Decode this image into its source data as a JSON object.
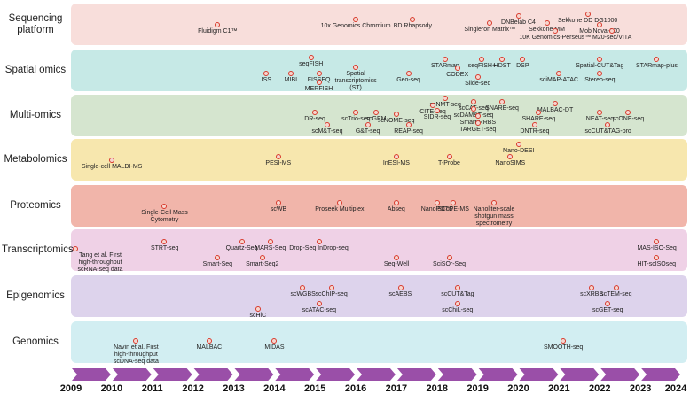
{
  "rows": [
    {
      "label": "Sequencing platform",
      "color": "#f8dedb",
      "techs": [
        {
          "name": "Fluidigm C1™",
          "year": 2012.6,
          "dy": 0,
          "dir": "below"
        },
        {
          "name": "10x Genomics Chromium",
          "year": 2016.0,
          "dy": -6,
          "dir": "below"
        },
        {
          "name": "BD Rhapsody",
          "year": 2017.4,
          "dy": -6,
          "dir": "below"
        },
        {
          "name": "DNBelab C4",
          "year": 2020.0,
          "dy": -10,
          "dir": "below"
        },
        {
          "name": "Sekkone DD DG1000",
          "year": 2021.7,
          "dy": -12,
          "dir": "below"
        },
        {
          "name": "Singleron Matrix™",
          "year": 2019.3,
          "dy": -2,
          "dir": "below"
        },
        {
          "name": "Sekkone MM",
          "year": 2020.7,
          "dy": -2,
          "dir": "below"
        },
        {
          "name": "MobiNova-100",
          "year": 2022.0,
          "dy": 0,
          "dir": "below"
        },
        {
          "name": "10K Genomics-Perseus™",
          "year": 2020.9,
          "dy": 7,
          "dir": "below"
        },
        {
          "name": "M20-seq/VITA",
          "year": 2022.3,
          "dy": 7,
          "dir": "below"
        }
      ]
    },
    {
      "label": "Spatial omics",
      "color": "#c6e9e6",
      "techs": [
        {
          "name": "ISS",
          "year": 2013.8,
          "dy": 3,
          "dir": "below"
        },
        {
          "name": "MIBI",
          "year": 2014.4,
          "dy": 3,
          "dir": "below"
        },
        {
          "name": "seqFISH",
          "year": 2014.9,
          "dy": -15,
          "dir": "below"
        },
        {
          "name": "FISSEQ",
          "year": 2015.1,
          "dy": 3,
          "dir": "below"
        },
        {
          "name": "MERFISH",
          "year": 2015.1,
          "dy": 13,
          "dir": "below"
        },
        {
          "name": "Spatial transcriptomics (ST)",
          "year": 2016.0,
          "dy": -4,
          "dir": "below"
        },
        {
          "name": "Geo-seq",
          "year": 2017.3,
          "dy": 3,
          "dir": "below"
        },
        {
          "name": "STARmap",
          "year": 2018.2,
          "dy": -13,
          "dir": "below"
        },
        {
          "name": "CODEX",
          "year": 2018.5,
          "dy": -3,
          "dir": "below"
        },
        {
          "name": "seqFISH+",
          "year": 2019.1,
          "dy": -13,
          "dir": "below"
        },
        {
          "name": "HDST",
          "year": 2019.6,
          "dy": -13,
          "dir": "below"
        },
        {
          "name": "Slide-seq",
          "year": 2019.0,
          "dy": 7,
          "dir": "below"
        },
        {
          "name": "DSP",
          "year": 2020.1,
          "dy": -13,
          "dir": "below"
        },
        {
          "name": "sciMAP-ATAC",
          "year": 2021.0,
          "dy": 3,
          "dir": "below"
        },
        {
          "name": "Spatial-CUT&Tag",
          "year": 2022.0,
          "dy": -13,
          "dir": "below"
        },
        {
          "name": "Stereo-seq",
          "year": 2022.0,
          "dy": 3,
          "dir": "below"
        },
        {
          "name": "STARmap-plus",
          "year": 2023.4,
          "dy": -13,
          "dir": "below"
        }
      ]
    },
    {
      "label": "Multi-omics",
      "color": "#d5e5cf",
      "techs": [
        {
          "name": "DR-seq",
          "year": 2015.0,
          "dy": -4,
          "dir": "below"
        },
        {
          "name": "scTrio-seq",
          "year": 2016.0,
          "dy": -4,
          "dir": "below"
        },
        {
          "name": "scGEM",
          "year": 2016.5,
          "dy": -4,
          "dir": "below"
        },
        {
          "name": "scNOME-seq",
          "year": 2017.0,
          "dy": -2,
          "dir": "below"
        },
        {
          "name": "scM&T-seq",
          "year": 2015.3,
          "dy": 10,
          "dir": "below"
        },
        {
          "name": "G&T-seq",
          "year": 2016.3,
          "dy": 10,
          "dir": "below"
        },
        {
          "name": "REAP-seq",
          "year": 2017.3,
          "dy": 10,
          "dir": "below"
        },
        {
          "name": "scNMT-seq",
          "year": 2018.2,
          "dy": -20,
          "dir": "below"
        },
        {
          "name": "CITE-seq",
          "year": 2017.9,
          "dy": -12,
          "dir": "below"
        },
        {
          "name": "SIDR-seq",
          "year": 2018.0,
          "dy": -6,
          "dir": "below"
        },
        {
          "name": "scCAT-seq",
          "year": 2018.9,
          "dy": -16,
          "dir": "below"
        },
        {
          "name": "scDAM&T-seq",
          "year": 2018.9,
          "dy": -8,
          "dir": "below"
        },
        {
          "name": "Smart-RRBS",
          "year": 2019.0,
          "dy": 0,
          "dir": "below"
        },
        {
          "name": "TARGET-seq",
          "year": 2019.0,
          "dy": 8,
          "dir": "below"
        },
        {
          "name": "SNARE-seq",
          "year": 2019.6,
          "dy": -16,
          "dir": "below"
        },
        {
          "name": "MALBAC-DT",
          "year": 2020.9,
          "dy": -14,
          "dir": "below"
        },
        {
          "name": "SHARE-seq",
          "year": 2020.5,
          "dy": -4,
          "dir": "below"
        },
        {
          "name": "DNTR-seq",
          "year": 2020.4,
          "dy": 10,
          "dir": "below"
        },
        {
          "name": "NEAT-seq",
          "year": 2022.0,
          "dy": -4,
          "dir": "below"
        },
        {
          "name": "scONE-seq",
          "year": 2022.7,
          "dy": -4,
          "dir": "below"
        },
        {
          "name": "scCUT&TAG-pro",
          "year": 2022.2,
          "dy": 10,
          "dir": "below"
        }
      ]
    },
    {
      "label": "Metabolomics",
      "color": "#f7e7ae",
      "techs": [
        {
          "name": "Single-cell MALDI-MS",
          "year": 2010.0,
          "dy": 0,
          "dir": "below"
        },
        {
          "name": "PESI-MS",
          "year": 2014.1,
          "dy": -4,
          "dir": "below"
        },
        {
          "name": "InESI-MS",
          "year": 2017.0,
          "dy": -4,
          "dir": "below"
        },
        {
          "name": "T-Probe",
          "year": 2018.3,
          "dy": -4,
          "dir": "below"
        },
        {
          "name": "Nano-DESI",
          "year": 2020.0,
          "dy": -18,
          "dir": "below"
        },
        {
          "name": "NanoSIMS",
          "year": 2019.8,
          "dy": -4,
          "dir": "below"
        }
      ]
    },
    {
      "label": "Proteomics",
      "color": "#f1b5aa",
      "techs": [
        {
          "name": "Single-Cell Mass Cytometry",
          "year": 2011.3,
          "dy": 0,
          "dir": "below"
        },
        {
          "name": "scWB",
          "year": 2014.1,
          "dy": -4,
          "dir": "below"
        },
        {
          "name": "Proseek Multiplex",
          "year": 2015.6,
          "dy": -4,
          "dir": "below"
        },
        {
          "name": "Abseq",
          "year": 2017.0,
          "dy": -4,
          "dir": "below"
        },
        {
          "name": "NanoPOTS",
          "year": 2018.0,
          "dy": -4,
          "dir": "below"
        },
        {
          "name": "SCoPE-MS",
          "year": 2018.4,
          "dy": -4,
          "dir": "below"
        },
        {
          "name": "Nanoliter-scale shotgun mass spectrometry",
          "year": 2019.4,
          "dy": -4,
          "dir": "below"
        }
      ]
    },
    {
      "label": "Transcriptomics",
      "color": "#efd1e6",
      "techs": [
        {
          "name": "Tang et al. First high-throughput scRNA-seq data",
          "year": 2009.1,
          "dy": -2,
          "dir": "below"
        },
        {
          "name": "STRT-seq",
          "year": 2011.3,
          "dy": -10,
          "dir": "below"
        },
        {
          "name": "Quartz-Seq",
          "year": 2013.2,
          "dy": -10,
          "dir": "below"
        },
        {
          "name": "MARS-Seq",
          "year": 2013.9,
          "dy": -10,
          "dir": "below"
        },
        {
          "name": "Smart-Seq",
          "year": 2012.6,
          "dy": 8,
          "dir": "below"
        },
        {
          "name": "Smart-Seq2",
          "year": 2013.7,
          "dy": 8,
          "dir": "below"
        },
        {
          "name": "Drop-Seq InDrop-seq",
          "year": 2015.1,
          "dy": -10,
          "dir": "below"
        },
        {
          "name": "Seq-Well",
          "year": 2017.0,
          "dy": 8,
          "dir": "below"
        },
        {
          "name": "SciSOr-Seq",
          "year": 2018.3,
          "dy": 8,
          "dir": "below"
        },
        {
          "name": "MAS-ISO-Seq",
          "year": 2023.4,
          "dy": -10,
          "dir": "below"
        },
        {
          "name": "HIT-scISOseq",
          "year": 2023.4,
          "dy": 8,
          "dir": "below"
        }
      ]
    },
    {
      "label": "Epigenomics",
      "color": "#ddd3ec",
      "techs": [
        {
          "name": "scWGBS",
          "year": 2014.7,
          "dy": -10,
          "dir": "below"
        },
        {
          "name": "scChIP-seq",
          "year": 2015.4,
          "dy": -10,
          "dir": "below"
        },
        {
          "name": "scATAC-seq",
          "year": 2015.1,
          "dy": 8,
          "dir": "below"
        },
        {
          "name": "scHiC",
          "year": 2013.6,
          "dy": 14,
          "dir": "below"
        },
        {
          "name": "scAEBS",
          "year": 2017.1,
          "dy": -10,
          "dir": "below"
        },
        {
          "name": "scCUT&Tag",
          "year": 2018.5,
          "dy": -10,
          "dir": "below"
        },
        {
          "name": "scChiL-seq",
          "year": 2018.5,
          "dy": 8,
          "dir": "below"
        },
        {
          "name": "scXRBS",
          "year": 2021.8,
          "dy": -10,
          "dir": "below"
        },
        {
          "name": "scTEM-seq",
          "year": 2022.4,
          "dy": -10,
          "dir": "below"
        },
        {
          "name": "scGET-seq",
          "year": 2022.2,
          "dy": 8,
          "dir": "below"
        }
      ]
    },
    {
      "label": "Genomics",
      "color": "#d2eef2",
      "techs": [
        {
          "name": "Navin et al. First high-throughput scDNA-seq data",
          "year": 2010.6,
          "dy": -2,
          "dir": "below"
        },
        {
          "name": "MALBAC",
          "year": 2012.4,
          "dy": -2,
          "dir": "below"
        },
        {
          "name": "MIDAS",
          "year": 2014.0,
          "dy": -2,
          "dir": "below"
        },
        {
          "name": "SMOOTH-seq",
          "year": 2021.1,
          "dy": -2,
          "dir": "below"
        }
      ]
    }
  ],
  "years": [
    "2009",
    "2010",
    "2011",
    "2012",
    "2013",
    "2014",
    "2015",
    "2016",
    "2017",
    "2018",
    "2019",
    "2020",
    "2021",
    "2022",
    "2023",
    "2024"
  ],
  "arrow_color": "#9a4fa8"
}
